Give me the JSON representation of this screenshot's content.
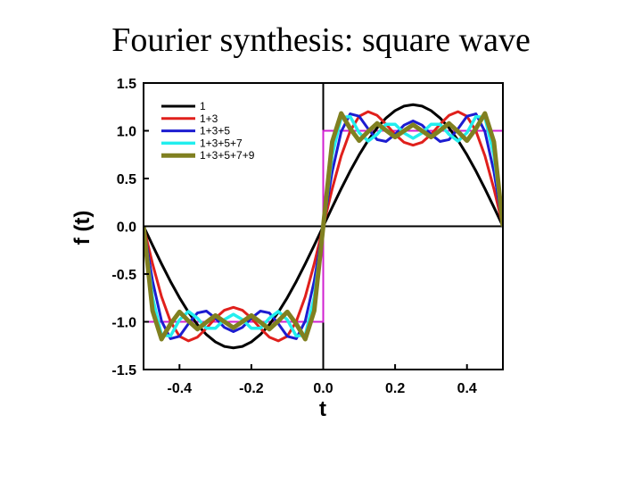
{
  "chart_data": {
    "type": "line",
    "title": "Fourier synthesis: square wave",
    "x_label": "t",
    "y_label": "f (t)",
    "xlim": [
      -0.5,
      0.5
    ],
    "ylim": [
      -1.5,
      1.5
    ],
    "xticks": [
      -0.4,
      -0.2,
      {
        "value": 0,
        "label": "0.0"
      },
      0.2,
      0.4
    ],
    "yticks": [
      1.5,
      {
        "value": 1,
        "label": "1.0"
      },
      0.5,
      {
        "value": 0,
        "label": "0.0"
      },
      -0.5,
      {
        "value": -1,
        "label": "-1.0"
      },
      -1.5
    ],
    "grid": false,
    "zero_lines": true,
    "legend": "upper left",
    "x": [
      -0.5,
      -0.475,
      -0.45,
      -0.425,
      -0.4,
      -0.375,
      -0.35,
      -0.325,
      -0.3,
      -0.275,
      -0.25,
      -0.225,
      -0.2,
      -0.175,
      -0.15,
      -0.125,
      -0.1,
      -0.075,
      -0.05,
      -0.025,
      0,
      0.025,
      0.05,
      0.075,
      0.1,
      0.125,
      0.15,
      0.175,
      0.2,
      0.225,
      0.25,
      0.275,
      0.3,
      0.325,
      0.35,
      0.375,
      0.4,
      0.425,
      0.45,
      0.475,
      0.5
    ],
    "series": [
      {
        "name": "1",
        "color": "#000000",
        "width": 3,
        "values": [
          0,
          -0.199,
          -0.393,
          -0.578,
          -0.748,
          -0.9,
          -1.03,
          -1.134,
          -1.211,
          -1.258,
          -1.273,
          -1.258,
          -1.211,
          -1.134,
          -1.03,
          -0.9,
          -0.748,
          -0.578,
          -0.393,
          -0.199,
          0,
          0.199,
          0.393,
          0.578,
          0.748,
          0.9,
          1.03,
          1.134,
          1.211,
          1.258,
          1.273,
          1.258,
          1.211,
          1.134,
          1.03,
          0.9,
          0.748,
          0.578,
          0.393,
          0.199,
          0
        ]
      },
      {
        "name": "1+3",
        "color": "#e0201c",
        "width": 3,
        "values": [
          0,
          -0.392,
          -0.737,
          -0.997,
          -1.152,
          -1.2,
          -1.161,
          -1.068,
          -0.962,
          -0.879,
          -0.849,
          -0.879,
          -0.962,
          -1.068,
          -1.161,
          -1.2,
          -1.152,
          -0.997,
          -0.737,
          -0.392,
          0,
          0.392,
          0.737,
          0.997,
          1.152,
          1.2,
          1.161,
          1.068,
          0.962,
          0.879,
          0.849,
          0.879,
          0.962,
          1.068,
          1.161,
          1.2,
          1.152,
          0.997,
          0.737,
          0.392,
          0
        ]
      },
      {
        "name": "1+3+5",
        "color": "#1c1cd0",
        "width": 3,
        "values": [
          0,
          -0.572,
          -0.991,
          -1.177,
          -1.152,
          -1.02,
          -0.907,
          -0.888,
          -0.962,
          -1.059,
          -1.103,
          -1.059,
          -0.962,
          -0.888,
          -0.907,
          -1.02,
          -1.152,
          -1.177,
          -0.991,
          -0.572,
          0,
          0.572,
          0.991,
          1.177,
          1.152,
          1.02,
          0.907,
          0.888,
          0.962,
          1.059,
          1.103,
          1.059,
          0.962,
          0.888,
          0.907,
          1.02,
          1.152,
          1.177,
          0.991,
          0.572,
          0
        ]
      },
      {
        "name": "1+3+5+7",
        "color": "#22eeee",
        "width": 3.5,
        "values": [
          0,
          -0.745,
          -1.139,
          -1.149,
          -0.979,
          -0.892,
          -0.963,
          -1.068,
          -1.068,
          -0.977,
          -0.922,
          -0.977,
          -1.068,
          -1.068,
          -0.963,
          -0.892,
          -0.979,
          -1.149,
          -1.139,
          -0.745,
          0,
          0.745,
          1.139,
          1.149,
          0.979,
          0.892,
          0.963,
          1.068,
          1.068,
          0.977,
          0.922,
          0.977,
          1.068,
          1.068,
          0.963,
          0.892,
          0.979,
          1.149,
          1.139,
          0.745,
          0
        ]
      },
      {
        "name": "1+3+5+7+9",
        "color": "#808020",
        "width": 5,
        "values": [
          0,
          -0.884,
          -1.182,
          -1.023,
          -0.896,
          -0.992,
          -1.077,
          -1.004,
          -0.934,
          -0.999,
          -1.063,
          -0.999,
          -0.934,
          -1.004,
          -1.077,
          -0.992,
          -0.896,
          -1.023,
          -1.182,
          -0.884,
          0,
          0.884,
          1.182,
          1.023,
          0.896,
          0.992,
          1.077,
          1.004,
          0.934,
          0.999,
          1.063,
          0.999,
          0.934,
          1.004,
          1.077,
          0.992,
          0.896,
          1.023,
          1.182,
          0.884,
          0
        ]
      }
    ],
    "reference": {
      "color": "#d020d0",
      "x": [
        -0.5,
        0,
        0,
        0.5
      ],
      "values": [
        -1,
        -1,
        1,
        1
      ]
    }
  }
}
